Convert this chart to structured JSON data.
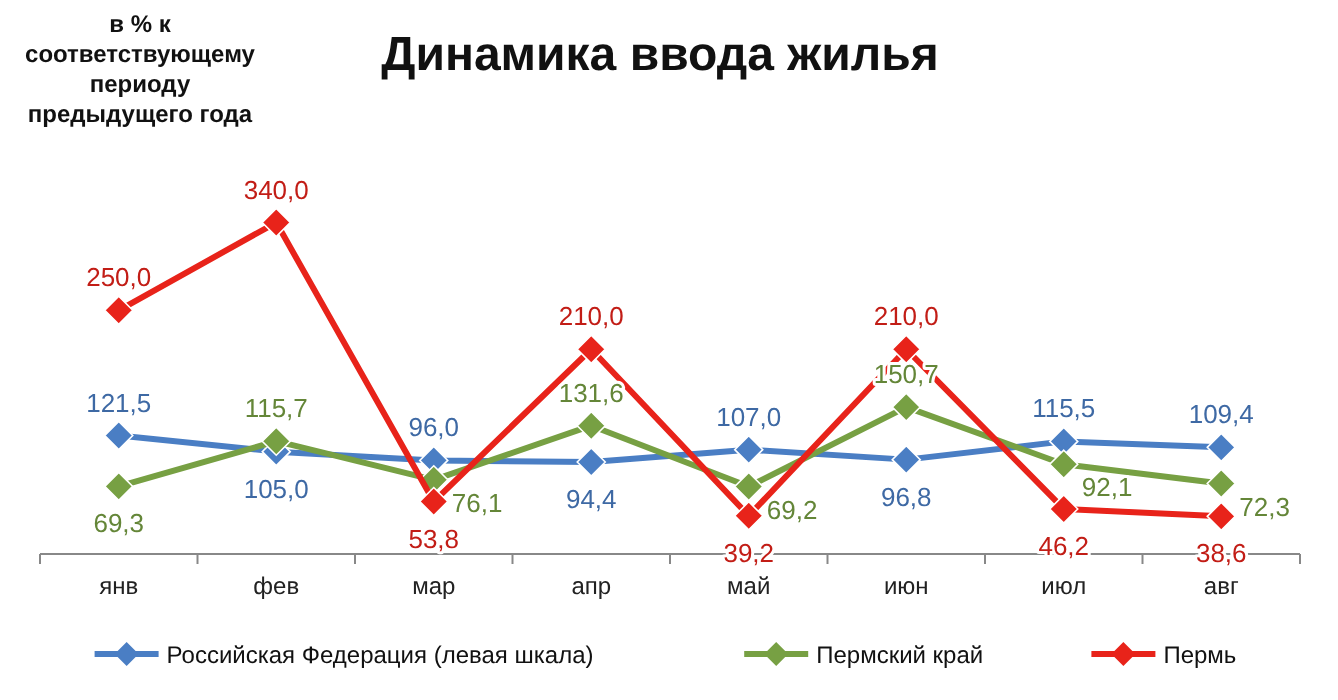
{
  "chart_data": {
    "type": "line",
    "title": "Динамика ввода жилья",
    "ylabel": "в % к соответствующему периоду предыдущего года",
    "categories": [
      "янв",
      "фев",
      "мар",
      "апр",
      "май",
      "июн",
      "июл",
      "авг"
    ],
    "series": [
      {
        "name": "Российская Федерация (левая шкала)",
        "color": "#4a7ec4",
        "values": [
          121.5,
          105.0,
          96.0,
          94.4,
          107.0,
          96.8,
          115.5,
          109.4
        ],
        "value_labels": [
          "121,5",
          "105,0",
          "96,0",
          "94,4",
          "107,0",
          "96,8",
          "115,5",
          "109,4"
        ]
      },
      {
        "name": "Пермский край",
        "color": "#77a043",
        "values": [
          69.3,
          115.7,
          76.1,
          131.6,
          69.2,
          150.7,
          92.1,
          72.3
        ],
        "value_labels": [
          "69,3",
          "115,7",
          "76,1",
          "131,6",
          "69,2",
          "150,7",
          "92,1",
          "72,3"
        ]
      },
      {
        "name": "Пермь",
        "color": "#e8231a",
        "values": [
          250.0,
          340.0,
          53.8,
          210.0,
          39.2,
          210.0,
          46.2,
          38.6
        ],
        "value_labels": [
          "250,0",
          "340,0",
          "53,8",
          "210,0",
          "39,2",
          "210,0",
          "46,2",
          "38,6"
        ]
      }
    ],
    "marker": "diamond",
    "line_style": "solid",
    "legend": "bottom",
    "grid": false
  }
}
